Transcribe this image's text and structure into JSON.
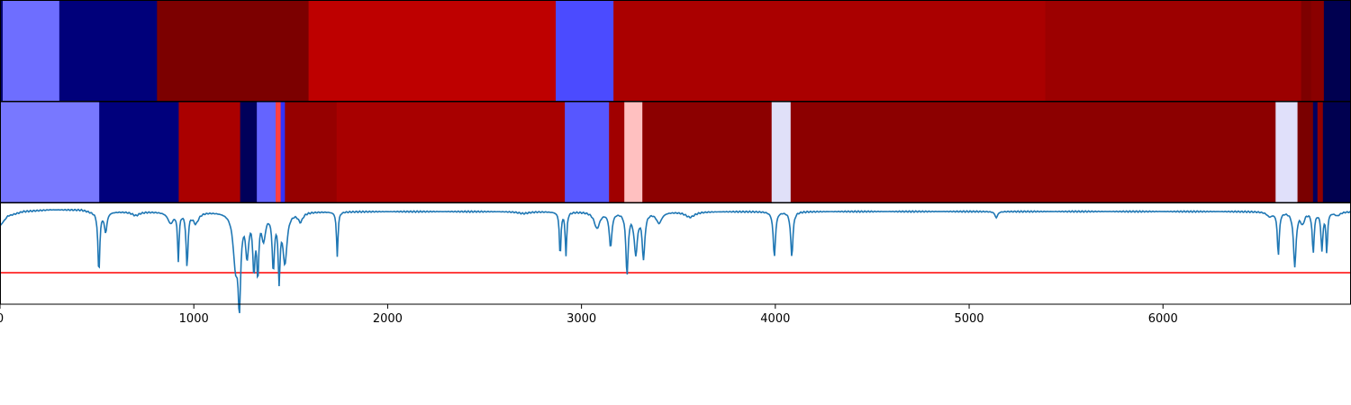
{
  "chart_data": [
    {
      "type": "heatmap",
      "xlim": [
        0,
        6970
      ],
      "colors_comment": "",
      "segments": [
        {
          "start": 0,
          "end": 14,
          "color": "#00006a"
        },
        {
          "start": 14,
          "end": 306,
          "color": "#6e6eff"
        },
        {
          "start": 306,
          "end": 810,
          "color": "#00007a"
        },
        {
          "start": 810,
          "end": 1592,
          "color": "#7c0000"
        },
        {
          "start": 1592,
          "end": 2867,
          "color": "#be0000"
        },
        {
          "start": 2867,
          "end": 3165,
          "color": "#4b4bff"
        },
        {
          "start": 3165,
          "end": 5393,
          "color": "#aa0000"
        },
        {
          "start": 5393,
          "end": 6713,
          "color": "#9c0000"
        },
        {
          "start": 6713,
          "end": 6764,
          "color": "#7e0000"
        },
        {
          "start": 6764,
          "end": 6830,
          "color": "#8a0000"
        },
        {
          "start": 6830,
          "end": 6970,
          "color": "#000050"
        }
      ]
    },
    {
      "type": "heatmap",
      "xlim": [
        0,
        6970
      ],
      "segments": [
        {
          "start": 0,
          "end": 512,
          "color": "#7878ff"
        },
        {
          "start": 512,
          "end": 922,
          "color": "#00007c"
        },
        {
          "start": 922,
          "end": 1239,
          "color": "#aa0000"
        },
        {
          "start": 1239,
          "end": 1325,
          "color": "#00005a"
        },
        {
          "start": 1325,
          "end": 1422,
          "color": "#6464ff"
        },
        {
          "start": 1422,
          "end": 1448,
          "color": "#ff4040"
        },
        {
          "start": 1448,
          "end": 1470,
          "color": "#3232ff"
        },
        {
          "start": 1470,
          "end": 1737,
          "color": "#960000"
        },
        {
          "start": 1737,
          "end": 2914,
          "color": "#a80000"
        },
        {
          "start": 2914,
          "end": 3142,
          "color": "#5757ff"
        },
        {
          "start": 3142,
          "end": 3221,
          "color": "#a00000"
        },
        {
          "start": 3221,
          "end": 3314,
          "color": "#ffc0c0"
        },
        {
          "start": 3314,
          "end": 3981,
          "color": "#8c0000"
        },
        {
          "start": 3981,
          "end": 4079,
          "color": "#e0e0f8"
        },
        {
          "start": 4079,
          "end": 6581,
          "color": "#8c0000"
        },
        {
          "start": 6581,
          "end": 6694,
          "color": "#e0e0fa"
        },
        {
          "start": 6694,
          "end": 6774,
          "color": "#7a0000"
        },
        {
          "start": 6774,
          "end": 6797,
          "color": "#000060"
        },
        {
          "start": 6797,
          "end": 6825,
          "color": "#900000"
        },
        {
          "start": 6825,
          "end": 6970,
          "color": "#000050"
        }
      ]
    },
    {
      "type": "line",
      "xlim": [
        0,
        6970
      ],
      "ylim": [
        -1.05,
        0.08
      ],
      "threshold": -0.7,
      "threshold_color": "#ff0000",
      "series_color": "#1f77b4",
      "xticks": [
        0,
        1000,
        2000,
        3000,
        4000,
        5000,
        6000
      ],
      "xtick_labels": [
        "0",
        "1000",
        "2000",
        "3000",
        "4000",
        "5000",
        "6000"
      ],
      "baseline_points": [
        [
          0,
          -0.18
        ],
        [
          40,
          -0.07
        ],
        [
          120,
          -0.02
        ],
        [
          260,
          0.0
        ],
        [
          420,
          0.0
        ],
        [
          470,
          -0.02
        ]
      ],
      "dips": [
        {
          "x": 510,
          "depth": -0.67,
          "width": 10
        },
        {
          "x": 545,
          "depth": -0.22,
          "width": 14
        },
        {
          "x": 700,
          "depth": -0.04,
          "width": 40
        },
        {
          "x": 880,
          "depth": -0.12,
          "width": 30
        },
        {
          "x": 920,
          "depth": -0.52,
          "width": 8
        },
        {
          "x": 965,
          "depth": -0.6,
          "width": 10
        },
        {
          "x": 1010,
          "depth": -0.12,
          "width": 30
        },
        {
          "x": 1215,
          "depth": -0.55,
          "width": 25
        },
        {
          "x": 1235,
          "depth": -0.92,
          "width": 14
        },
        {
          "x": 1275,
          "depth": -0.45,
          "width": 16
        },
        {
          "x": 1310,
          "depth": -0.6,
          "width": 12
        },
        {
          "x": 1330,
          "depth": -0.65,
          "width": 10
        },
        {
          "x": 1360,
          "depth": -0.28,
          "width": 20
        },
        {
          "x": 1410,
          "depth": -0.6,
          "width": 12
        },
        {
          "x": 1440,
          "depth": -0.7,
          "width": 10
        },
        {
          "x": 1470,
          "depth": -0.55,
          "width": 22
        },
        {
          "x": 1550,
          "depth": -0.1,
          "width": 25
        },
        {
          "x": 1740,
          "depth": -0.5,
          "width": 8
        },
        {
          "x": 2700,
          "depth": -0.02,
          "width": 60
        },
        {
          "x": 2890,
          "depth": -0.5,
          "width": 8
        },
        {
          "x": 2920,
          "depth": -0.48,
          "width": 8
        },
        {
          "x": 3080,
          "depth": -0.18,
          "width": 30
        },
        {
          "x": 3150,
          "depth": -0.38,
          "width": 14
        },
        {
          "x": 3235,
          "depth": -0.68,
          "width": 12
        },
        {
          "x": 3280,
          "depth": -0.45,
          "width": 18
        },
        {
          "x": 3320,
          "depth": -0.5,
          "width": 14
        },
        {
          "x": 3400,
          "depth": -0.12,
          "width": 30
        },
        {
          "x": 3560,
          "depth": -0.06,
          "width": 50
        },
        {
          "x": 3995,
          "depth": -0.5,
          "width": 12
        },
        {
          "x": 4085,
          "depth": -0.5,
          "width": 12
        },
        {
          "x": 5140,
          "depth": -0.07,
          "width": 14
        },
        {
          "x": 6550,
          "depth": -0.05,
          "width": 30
        },
        {
          "x": 6595,
          "depth": -0.48,
          "width": 10
        },
        {
          "x": 6680,
          "depth": -0.6,
          "width": 14
        },
        {
          "x": 6720,
          "depth": -0.12,
          "width": 20
        },
        {
          "x": 6775,
          "depth": -0.45,
          "width": 10
        },
        {
          "x": 6820,
          "depth": -0.42,
          "width": 10
        },
        {
          "x": 6845,
          "depth": -0.45,
          "width": 8
        },
        {
          "x": 6900,
          "depth": -0.04,
          "width": 30
        }
      ]
    }
  ]
}
